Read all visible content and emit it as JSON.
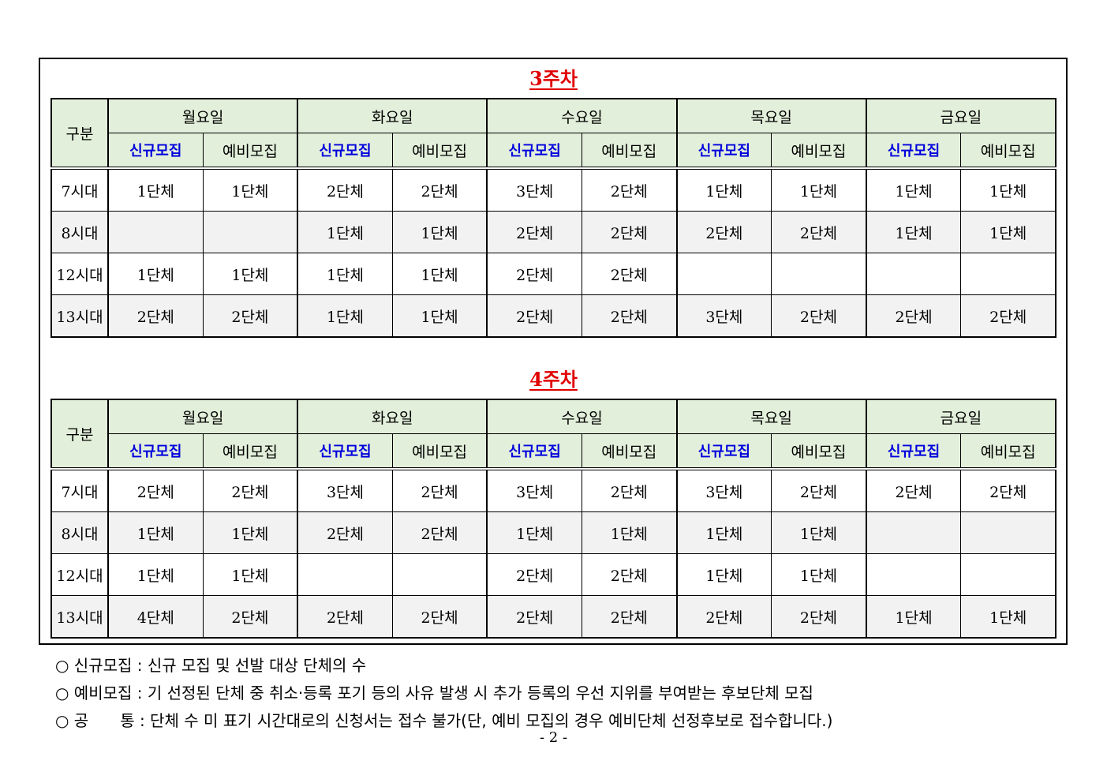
{
  "header": {
    "category": "구분",
    "days": [
      "월요일",
      "화요일",
      "수요일",
      "목요일",
      "금요일"
    ],
    "new_label": "신규모집",
    "reserve_label": "예비모집"
  },
  "weeks": [
    {
      "title": "3주차",
      "rows": [
        {
          "time": "7시대",
          "cells": [
            "1단체",
            "1단체",
            "2단체",
            "2단체",
            "3단체",
            "2단체",
            "1단체",
            "1단체",
            "1단체",
            "1단체"
          ]
        },
        {
          "time": "8시대",
          "cells": [
            "",
            "",
            "1단체",
            "1단체",
            "2단체",
            "2단체",
            "2단체",
            "2단체",
            "1단체",
            "1단체"
          ]
        },
        {
          "time": "12시대",
          "cells": [
            "1단체",
            "1단체",
            "1단체",
            "1단체",
            "2단체",
            "2단체",
            "",
            "",
            "",
            ""
          ]
        },
        {
          "time": "13시대",
          "cells": [
            "2단체",
            "2단체",
            "1단체",
            "1단체",
            "2단체",
            "2단체",
            "3단체",
            "2단체",
            "2단체",
            "2단체"
          ]
        }
      ]
    },
    {
      "title": "4주차",
      "rows": [
        {
          "time": "7시대",
          "cells": [
            "2단체",
            "2단체",
            "3단체",
            "2단체",
            "3단체",
            "2단체",
            "3단체",
            "2단체",
            "2단체",
            "2단체"
          ]
        },
        {
          "time": "8시대",
          "cells": [
            "1단체",
            "1단체",
            "2단체",
            "2단체",
            "1단체",
            "1단체",
            "1단체",
            "1단체",
            "",
            ""
          ]
        },
        {
          "time": "12시대",
          "cells": [
            "1단체",
            "1단체",
            "",
            "",
            "2단체",
            "2단체",
            "1단체",
            "1단체",
            "",
            ""
          ]
        },
        {
          "time": "13시대",
          "cells": [
            "4단체",
            "2단체",
            "2단체",
            "2단체",
            "2단체",
            "2단체",
            "2단체",
            "2단체",
            "1단체",
            "1단체"
          ]
        }
      ]
    }
  ],
  "notes": [
    "○ 신규모집 : 신규 모집 및 선발 대상 단체의 수",
    "○ 예비모집 : 기 선정된 단체 중 취소·등록 포기 등의 사유 발생 시 추가 등록의 우선 지위를 부여받는 후보단체 모집",
    "○ 공　　통 : 단체 수 미 표기 시간대로의 신청서는 접수 불가(단, 예비 모집의 경우 예비단체 선정후보로 접수합니다.)"
  ],
  "page_number": "- 2 -",
  "colors": {
    "title": "#e00000",
    "new_label": "#0000dd",
    "header_bg": "#e2efda",
    "alt_row_bg": "#f2f2f2"
  }
}
